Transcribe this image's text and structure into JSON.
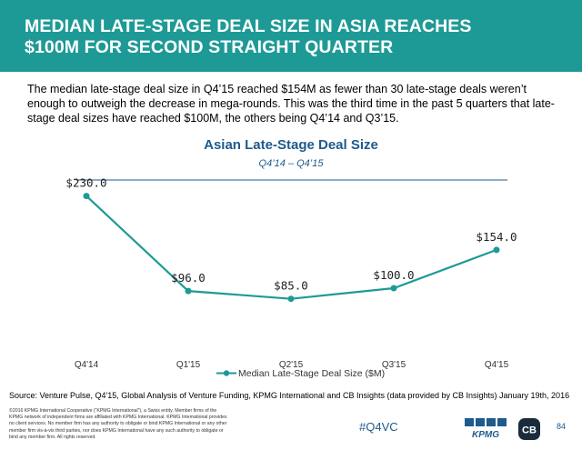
{
  "header": {
    "title_line1": "MEDIAN LATE-STAGE DEAL SIZE IN ASIA REACHES",
    "title_line2": "$100M FOR SECOND STRAIGHT QUARTER"
  },
  "intro": "The median late-stage deal size in Q4’15 reached $154M as fewer than 30 late-stage deals weren’t enough to outweigh the decrease in mega-rounds. This was the third time in the past 5 quarters that late-stage deal sizes have reached $100M, the others being Q4’14 and Q3’15.",
  "chart_data": {
    "type": "line",
    "title": "Asian Late-Stage Deal Size",
    "subtitle": "Q4’14 – Q4’15",
    "categories": [
      "Q4'14",
      "Q1'15",
      "Q2'15",
      "Q3'15",
      "Q4'15"
    ],
    "series": [
      {
        "name": "Median Late-Stage Deal Size ($M)",
        "values": [
          230,
          96,
          85,
          100,
          154
        ],
        "labels": [
          "$230.0",
          "$96.0",
          "$85.0",
          "$100.0",
          "$154.0"
        ],
        "color": "#1e9a96"
      }
    ],
    "ylim": [
      0,
      250
    ],
    "grid": false,
    "legend_position": "bottom"
  },
  "footer": {
    "source": "Source: Venture Pulse, Q4'15, Global Analysis of Venture Funding, KPMG International and CB Insights (data provided by CB Insights) January 19th, 2016",
    "legal": "©2016 KPMG International Cooperative (“KPMG International”), a Swiss entity. Member firms of the KPMG network of independent firms are affiliated with KPMG International. KPMG International provides no client services. No member firm has any authority to obligate or bind KPMG International or any other member firm vis-à-vis third parties, nor does KPMG International have any such authority to obligate or bind any member firm. All rights reserved.",
    "hashtag": "#Q4VC",
    "kpmg_logo_text": "KPMG",
    "cb_logo_text": "CB",
    "page_number": "84"
  },
  "colors": {
    "banner": "#1e9a96",
    "title_blue": "#1e5a8c",
    "series": "#1e9a96"
  }
}
